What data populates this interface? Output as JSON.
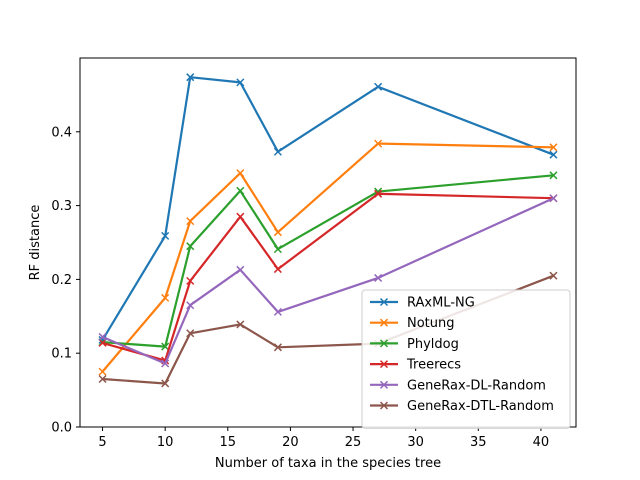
{
  "chart_data": {
    "type": "line",
    "title": "",
    "xlabel": "Number of taxa in the species tree",
    "ylabel": "RF distance",
    "xlim": [
      3.2,
      42.8
    ],
    "ylim": [
      0.0,
      0.5
    ],
    "xticks": [
      5,
      10,
      15,
      20,
      25,
      30,
      35,
      40
    ],
    "yticks": [
      0.0,
      0.1,
      0.2,
      0.3,
      0.4
    ],
    "ytick_labels": [
      "0.0",
      "0.1",
      "0.2",
      "0.3",
      "0.4"
    ],
    "grid": false,
    "legend_position": "lower right",
    "marker": "x",
    "x": [
      5,
      10,
      12,
      16,
      19,
      27,
      41
    ],
    "series": [
      {
        "name": "RAxML-NG",
        "color": "#1f77b4",
        "values": [
          0.118,
          0.259,
          0.474,
          0.467,
          0.373,
          0.461,
          0.369
        ]
      },
      {
        "name": "Notung",
        "color": "#ff7f0e",
        "values": [
          0.075,
          0.175,
          0.279,
          0.344,
          0.264,
          0.384,
          0.379
        ]
      },
      {
        "name": "Phyldog",
        "color": "#2ca02c",
        "values": [
          0.115,
          0.109,
          0.245,
          0.32,
          0.241,
          0.319,
          0.341
        ]
      },
      {
        "name": "Treerecs",
        "color": "#d62728",
        "values": [
          0.114,
          0.09,
          0.198,
          0.285,
          0.214,
          0.316,
          0.31
        ]
      },
      {
        "name": "GeneRax-DL-Random",
        "color": "#9467bd",
        "values": [
          0.122,
          0.086,
          0.165,
          0.213,
          0.156,
          0.202,
          0.31
        ]
      },
      {
        "name": "GeneRax-DTL-Random",
        "color": "#8c564b",
        "values": [
          0.065,
          0.059,
          0.127,
          0.139,
          0.108,
          0.113,
          0.205
        ]
      }
    ]
  }
}
